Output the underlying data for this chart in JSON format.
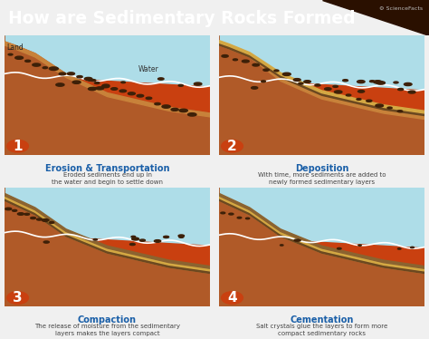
{
  "title": "How are Sedimentary Rocks Formed",
  "title_bg": "#3a1a05",
  "title_text_color": "#ffffff",
  "bg_color": "#f0f0f0",
  "panel_bg": "#ffffff",
  "panel_border": "#cccccc",
  "step_titles": [
    "Erosion & Transportation",
    "Deposition",
    "Compaction",
    "Cementation"
  ],
  "step_numbers": [
    "1",
    "2",
    "3",
    "4"
  ],
  "step_descriptions": [
    "Eroded sediments end up in\nthe water and begin to settle down",
    "With time, more sediments are added to\nnewly formed sedimentary layers",
    "The release of moisture from the sedimentary\nlayers makes the layers compact",
    "Salt crystals glue the layers to form more\ncompact sedimentary rocks"
  ],
  "step_title_color": "#1a5fa8",
  "step_desc_color": "#444444",
  "water_color": "#aedde8",
  "land_top_color": "#c8823a",
  "land_mid_color": "#b05a28",
  "land_deep_color": "#c94010",
  "sed_yellow": "#d4a843",
  "sed_brown": "#8b6330",
  "sed_dark": "#6b4820",
  "rock_color": "#3d2008",
  "number_bg": "#c94010",
  "land_label": "Land",
  "water_label": "Water"
}
